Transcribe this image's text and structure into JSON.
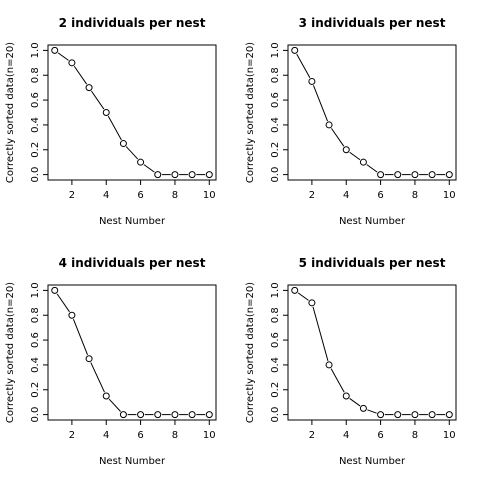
{
  "chart_data": [
    {
      "type": "line",
      "title": "2 individuals per nest",
      "xlabel": "Nest Number",
      "ylabel": "Correctly sorted data(n=20)",
      "x": [
        1,
        2,
        3,
        4,
        5,
        6,
        7,
        8,
        9,
        10
      ],
      "values": [
        1.0,
        0.9,
        0.7,
        0.5,
        0.25,
        0.1,
        0.0,
        0.0,
        0.0,
        0.0
      ],
      "xlim": [
        1,
        10
      ],
      "ylim": [
        0,
        1
      ],
      "xticks": [
        2,
        4,
        6,
        8,
        10
      ],
      "yticks": [
        0.0,
        0.2,
        0.4,
        0.6,
        0.8,
        1.0
      ],
      "xtick_labels": [
        "2",
        "4",
        "6",
        "8",
        "10"
      ],
      "ytick_labels": [
        "0.0",
        "0.2",
        "0.4",
        "0.6",
        "0.8",
        "1.0"
      ],
      "grid": false
    },
    {
      "type": "line",
      "title": "3 individuals per nest",
      "xlabel": "Nest Number",
      "ylabel": "Correctly sorted data(n=20)",
      "x": [
        1,
        2,
        3,
        4,
        5,
        6,
        7,
        8,
        9,
        10
      ],
      "values": [
        1.0,
        0.75,
        0.4,
        0.2,
        0.1,
        0.0,
        0.0,
        0.0,
        0.0,
        0.0
      ],
      "xlim": [
        1,
        10
      ],
      "ylim": [
        0,
        1
      ],
      "xticks": [
        2,
        4,
        6,
        8,
        10
      ],
      "yticks": [
        0.0,
        0.2,
        0.4,
        0.6,
        0.8,
        1.0
      ],
      "xtick_labels": [
        "2",
        "4",
        "6",
        "8",
        "10"
      ],
      "ytick_labels": [
        "0.0",
        "0.2",
        "0.4",
        "0.6",
        "0.8",
        "1.0"
      ],
      "grid": false
    },
    {
      "type": "line",
      "title": "4 individuals per nest",
      "xlabel": "Nest Number",
      "ylabel": "Correctly sorted data(n=20)",
      "x": [
        1,
        2,
        3,
        4,
        5,
        6,
        7,
        8,
        9,
        10
      ],
      "values": [
        1.0,
        0.8,
        0.45,
        0.15,
        0.0,
        0.0,
        0.0,
        0.0,
        0.0,
        0.0
      ],
      "xlim": [
        1,
        10
      ],
      "ylim": [
        0,
        1
      ],
      "xticks": [
        2,
        4,
        6,
        8,
        10
      ],
      "yticks": [
        0.0,
        0.2,
        0.4,
        0.6,
        0.8,
        1.0
      ],
      "xtick_labels": [
        "2",
        "4",
        "6",
        "8",
        "10"
      ],
      "ytick_labels": [
        "0.0",
        "0.2",
        "0.4",
        "0.6",
        "0.8",
        "1.0"
      ],
      "grid": false
    },
    {
      "type": "line",
      "title": "5 individuals per nest",
      "xlabel": "Nest Number",
      "ylabel": "Correctly sorted data(n=20)",
      "x": [
        1,
        2,
        3,
        4,
        5,
        6,
        7,
        8,
        9,
        10
      ],
      "values": [
        1.0,
        0.9,
        0.4,
        0.15,
        0.05,
        0.0,
        0.0,
        0.0,
        0.0,
        0.0
      ],
      "xlim": [
        1,
        10
      ],
      "ylim": [
        0,
        1
      ],
      "xticks": [
        2,
        4,
        6,
        8,
        10
      ],
      "yticks": [
        0.0,
        0.2,
        0.4,
        0.6,
        0.8,
        1.0
      ],
      "xtick_labels": [
        "2",
        "4",
        "6",
        "8",
        "10"
      ],
      "ytick_labels": [
        "0.0",
        "0.2",
        "0.4",
        "0.6",
        "0.8",
        "1.0"
      ],
      "grid": false
    }
  ]
}
